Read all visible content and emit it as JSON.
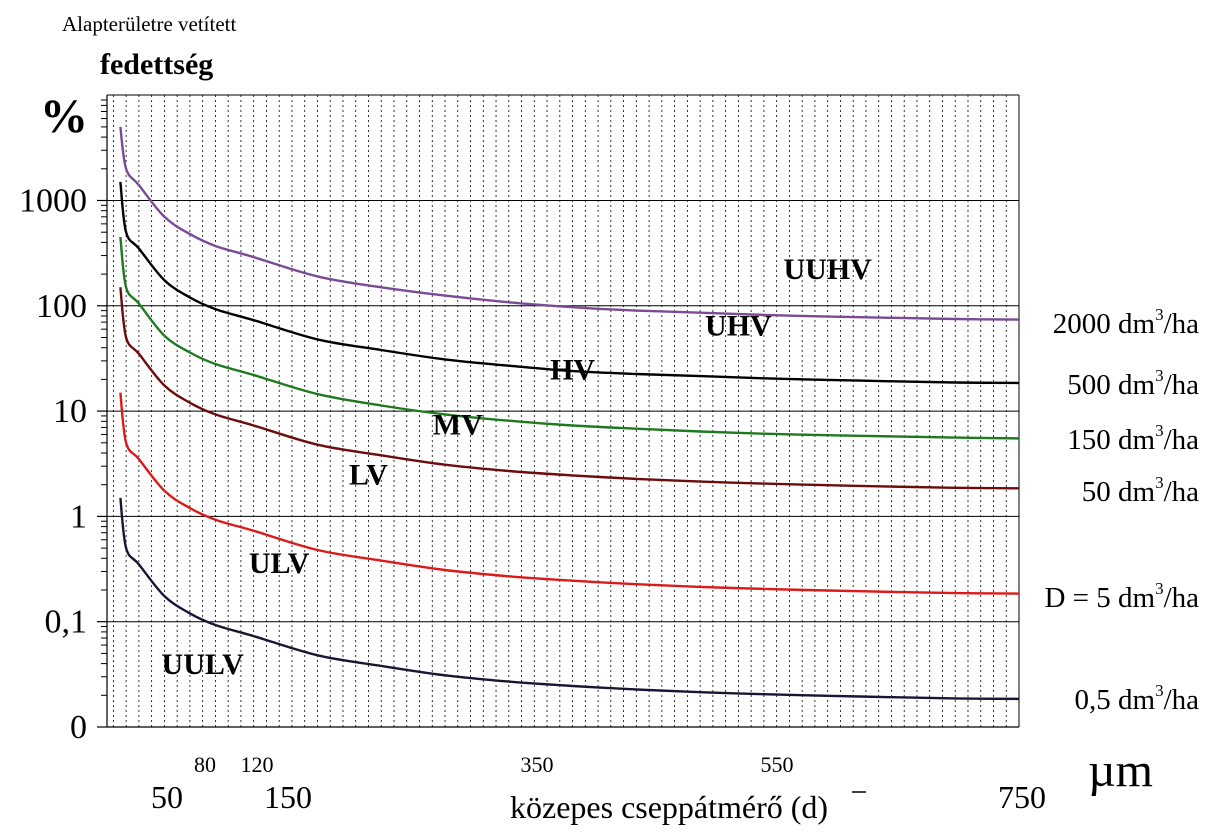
{
  "chart_data": {
    "type": "line",
    "title_small": "Alapterületre vetített",
    "title_bold": "fedettség",
    "ylabel": "%",
    "xlabel": "közepes cseppátmérő  (d)",
    "xunit": "µm",
    "yscale": "log",
    "xlim": [
      35,
      750
    ],
    "ylim": [
      0.01,
      10000
    ],
    "y_tick_labels": [
      {
        "value": 0.01,
        "label": "0"
      },
      {
        "value": 0.1,
        "label": "0,1"
      },
      {
        "value": 1,
        "label": "1"
      },
      {
        "value": 10,
        "label": "10"
      },
      {
        "value": 100,
        "label": "100"
      },
      {
        "value": 1000,
        "label": "1000"
      }
    ],
    "x_tick_labels_small": [
      {
        "value": 80,
        "label": "80"
      },
      {
        "value": 120,
        "label": "120"
      },
      {
        "value": 350,
        "label": "350"
      },
      {
        "value": 550,
        "label": "550"
      }
    ],
    "x_tick_labels_large": [
      {
        "value": 50,
        "label": "50"
      },
      {
        "value": 150,
        "label": "150"
      },
      {
        "value": 750,
        "label": "750"
      }
    ],
    "x": [
      40,
      50,
      60,
      80,
      100,
      120,
      150,
      200,
      250,
      300,
      350,
      400,
      450,
      500,
      550,
      600,
      650,
      700,
      750
    ],
    "series": [
      {
        "label": "2000 dm",
        "unit": "/ha",
        "color": "#7b4a94",
        "values": [
          5000,
          2000,
          1400,
          700,
          480,
          370,
          290,
          190,
          150,
          125,
          108,
          97,
          90,
          86,
          82,
          79,
          77,
          75,
          74
        ]
      },
      {
        "label": "500 dm",
        "unit": "/ha",
        "color": "#000000",
        "values": [
          1500,
          500,
          350,
          175,
          120,
          93,
          73,
          48,
          38,
          31,
          27,
          24,
          22.5,
          21.5,
          20.5,
          19.8,
          19.2,
          18.7,
          18.5
        ]
      },
      {
        "label": "150 dm",
        "unit": "/ha",
        "color": "#1f7a1f",
        "values": [
          450,
          150,
          105,
          52,
          36,
          28,
          22,
          14.5,
          11.3,
          9.3,
          8.1,
          7.3,
          6.8,
          6.4,
          6.1,
          5.9,
          5.75,
          5.6,
          5.5
        ]
      },
      {
        "label": "50 dm",
        "unit": "/ha",
        "color": "#6b0d0d",
        "values": [
          150,
          50,
          35,
          17.5,
          12,
          9.3,
          7.3,
          4.8,
          3.8,
          3.1,
          2.7,
          2.45,
          2.27,
          2.14,
          2.05,
          1.98,
          1.92,
          1.87,
          1.85
        ]
      },
      {
        "label": "D = 5 dm",
        "unit": "/ha",
        "color": "#dd1a1a",
        "values": [
          15,
          5,
          3.5,
          1.75,
          1.2,
          0.93,
          0.73,
          0.48,
          0.38,
          0.31,
          0.27,
          0.245,
          0.227,
          0.214,
          0.205,
          0.198,
          0.192,
          0.187,
          0.185
        ]
      },
      {
        "label": "0,5 dm",
        "unit": "/ha",
        "color": "#1b1535",
        "values": [
          1.5,
          0.5,
          0.35,
          0.175,
          0.12,
          0.093,
          0.073,
          0.048,
          0.038,
          0.031,
          0.027,
          0.0245,
          0.0227,
          0.0214,
          0.0205,
          0.0198,
          0.0192,
          0.0187,
          0.0185
        ]
      }
    ],
    "series_superscript": "3",
    "zone_labels": [
      {
        "label": "UUHV",
        "x": 600,
        "y": 180
      },
      {
        "label": "UHV",
        "x": 530,
        "y": 52
      },
      {
        "label": "HV",
        "x": 400,
        "y": 20
      },
      {
        "label": "MV",
        "x": 310,
        "y": 6
      },
      {
        "label": "LV",
        "x": 240,
        "y": 2
      },
      {
        "label": "ULV",
        "x": 170,
        "y": 0.29
      },
      {
        "label": "UULV",
        "x": 110,
        "y": 0.032
      }
    ],
    "grid": true
  }
}
